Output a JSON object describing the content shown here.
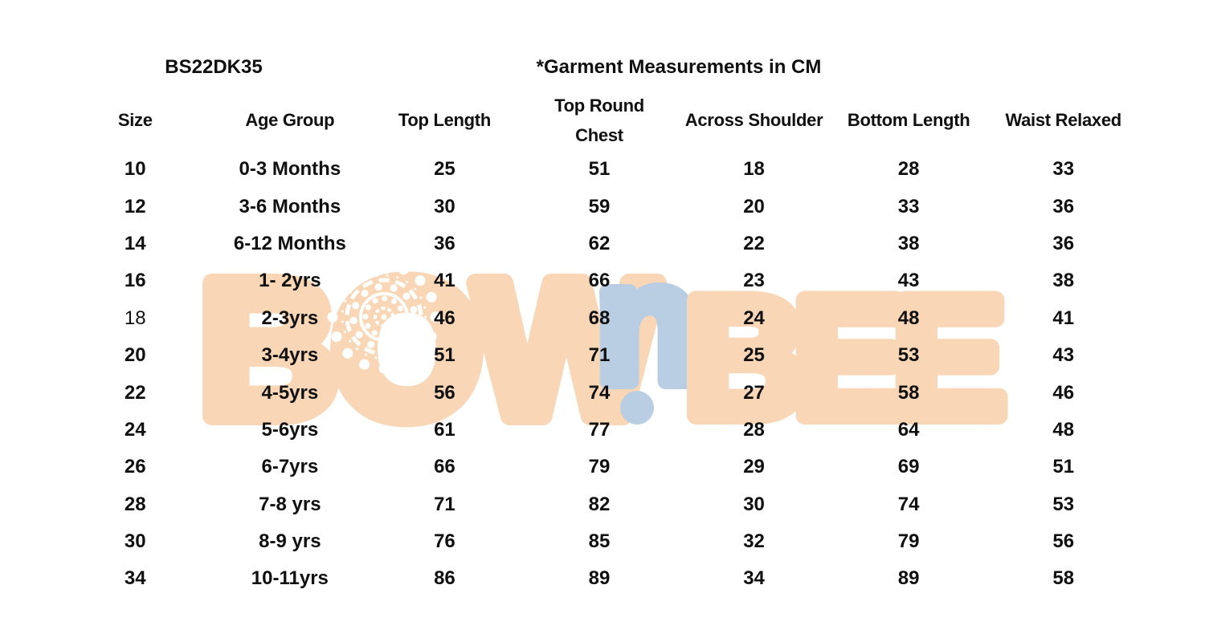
{
  "page": {
    "style_code": "BS22DK35",
    "measurement_note": "*Garment Measurements in CM"
  },
  "watermark": {
    "part_bow": "BOW",
    "part_n": "n",
    "part_bee": "BEE"
  },
  "colors": {
    "peach": "#f9d6b6",
    "blue": "#b9cee2",
    "ink": "#101010"
  },
  "table": {
    "headers": [
      "Size",
      "Age Group",
      "Top Length",
      "Top Round Chest",
      "Across Shoulder",
      "Bottom Length",
      "Waist Relaxed"
    ],
    "rows": [
      {
        "cells": [
          "10",
          "0-3 Months",
          "25",
          "51",
          "18",
          "28",
          "33"
        ],
        "size_bold": true
      },
      {
        "cells": [
          "12",
          "3-6 Months",
          "30",
          "59",
          "20",
          "33",
          "36"
        ],
        "size_bold": true
      },
      {
        "cells": [
          "14",
          "6-12 Months",
          "36",
          "62",
          "22",
          "38",
          "36"
        ],
        "size_bold": true
      },
      {
        "cells": [
          "16",
          "1- 2yrs",
          "41",
          "66",
          "23",
          "43",
          "38"
        ],
        "size_bold": true
      },
      {
        "cells": [
          "18",
          "2-3yrs",
          "46",
          "68",
          "24",
          "48",
          "41"
        ],
        "size_bold": false
      },
      {
        "cells": [
          "20",
          "3-4yrs",
          "51",
          "71",
          "25",
          "53",
          "43"
        ],
        "size_bold": true
      },
      {
        "cells": [
          "22",
          "4-5yrs",
          "56",
          "74",
          "27",
          "58",
          "46"
        ],
        "size_bold": true
      },
      {
        "cells": [
          "24",
          "5-6yrs",
          "61",
          "77",
          "28",
          "64",
          "48"
        ],
        "size_bold": true
      },
      {
        "cells": [
          "26",
          "6-7yrs",
          "66",
          "79",
          "29",
          "69",
          "51"
        ],
        "size_bold": true
      },
      {
        "cells": [
          "28",
          "7-8 yrs",
          "71",
          "82",
          "30",
          "74",
          "53"
        ],
        "size_bold": true
      },
      {
        "cells": [
          "30",
          "8-9 yrs",
          "76",
          "85",
          "32",
          "79",
          "56"
        ],
        "size_bold": true
      },
      {
        "cells": [
          "34",
          "10-11yrs",
          "86",
          "89",
          "34",
          "89",
          "58"
        ],
        "size_bold": true
      }
    ]
  }
}
